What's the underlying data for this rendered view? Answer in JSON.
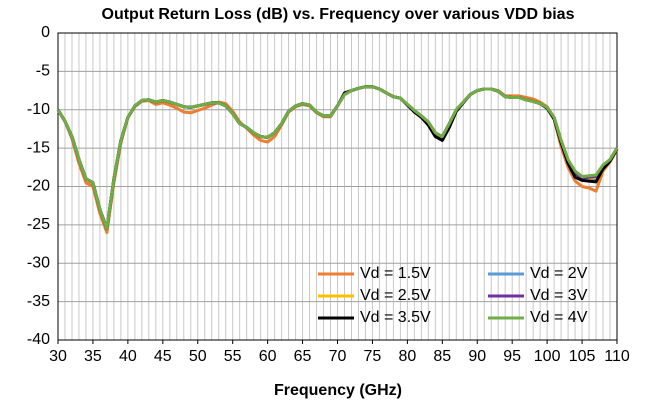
{
  "chart_data": {
    "type": "line",
    "title": "Output Return Loss (dB) vs. Frequency over various VDD bias",
    "xlabel": "Frequency (GHz)",
    "x": [
      30,
      31,
      32,
      33,
      34,
      35,
      36,
      37,
      38,
      39,
      40,
      41,
      42,
      43,
      44,
      45,
      46,
      47,
      48,
      49,
      50,
      51,
      52,
      53,
      54,
      55,
      56,
      57,
      58,
      59,
      60,
      61,
      62,
      63,
      64,
      65,
      66,
      67,
      68,
      69,
      70,
      71,
      72,
      73,
      74,
      75,
      76,
      77,
      78,
      79,
      80,
      81,
      82,
      83,
      84,
      85,
      86,
      87,
      88,
      89,
      90,
      91,
      92,
      93,
      94,
      95,
      96,
      97,
      98,
      99,
      100,
      101,
      102,
      103,
      104,
      105,
      106,
      107,
      108,
      109,
      110
    ],
    "series": [
      {
        "name": "Vd = 1.5V",
        "color": "#ED7D31",
        "values": [
          -10,
          -11.5,
          -13.8,
          -17,
          -19.5,
          -20,
          -23.5,
          -26,
          -19.5,
          -14.3,
          -11,
          -9.6,
          -8.9,
          -8.8,
          -9.3,
          -9.1,
          -9.4,
          -9.8,
          -10.3,
          -10.4,
          -10.1,
          -9.8,
          -9.4,
          -9,
          -9.2,
          -10.2,
          -11.6,
          -12.4,
          -13.3,
          -14,
          -14.2,
          -13.5,
          -12,
          -10.3,
          -9.6,
          -9.3,
          -9.5,
          -10.4,
          -10.9,
          -10.9,
          -9.5,
          -8,
          -7.5,
          -7.2,
          -7,
          -7,
          -7.3,
          -7.8,
          -8.3,
          -8.5,
          -9.4,
          -10.2,
          -10.9,
          -11.7,
          -13.1,
          -13.6,
          -11.9,
          -10,
          -9,
          -8,
          -7.5,
          -7.3,
          -7.3,
          -7.5,
          -8.2,
          -8.2,
          -8.2,
          -8.4,
          -8.6,
          -9,
          -9.6,
          -11.2,
          -14.8,
          -17.5,
          -19.3,
          -20,
          -20.2,
          -20.6,
          -18,
          -16.8,
          -15.2
        ]
      },
      {
        "name": "Vd = 2V",
        "color": "#5B9BD5",
        "values": [
          -10,
          -11.5,
          -13.5,
          -16.5,
          -19,
          -19.5,
          -23,
          -25.5,
          -19,
          -14,
          -11,
          -9.5,
          -8.8,
          -8.7,
          -9,
          -8.8,
          -9,
          -9.3,
          -9.6,
          -9.7,
          -9.5,
          -9.3,
          -9.1,
          -9.1,
          -9.5,
          -10.5,
          -11.8,
          -12.3,
          -13,
          -13.5,
          -13.6,
          -13,
          -11.8,
          -10.2,
          -9.5,
          -9.2,
          -9.4,
          -10.3,
          -10.8,
          -10.8,
          -9.5,
          -8,
          -7.5,
          -7.2,
          -7,
          -7,
          -7.3,
          -7.8,
          -8.3,
          -8.5,
          -9.3,
          -10.1,
          -10.8,
          -11.6,
          -13,
          -13.5,
          -11.8,
          -10,
          -9,
          -8,
          -7.5,
          -7.3,
          -7.3,
          -7.6,
          -8.3,
          -8.4,
          -8.4,
          -8.7,
          -8.9,
          -9.2,
          -9.7,
          -11,
          -14.1,
          -16.7,
          -18.4,
          -19,
          -19,
          -19,
          -17.4,
          -16.6,
          -15
        ]
      },
      {
        "name": "Vd = 2.5V",
        "color": "#FFC000",
        "values": [
          -10,
          -11.5,
          -13.5,
          -16.5,
          -19,
          -19.5,
          -23,
          -25.5,
          -19,
          -14,
          -11,
          -9.5,
          -8.8,
          -8.7,
          -9,
          -8.8,
          -9,
          -9.3,
          -9.6,
          -9.7,
          -9.5,
          -9.3,
          -9.1,
          -9.1,
          -9.5,
          -10.5,
          -11.8,
          -12.3,
          -13,
          -13.5,
          -13.6,
          -13,
          -11.8,
          -10.2,
          -9.5,
          -9.2,
          -9.4,
          -10.3,
          -10.8,
          -10.8,
          -9.5,
          -8,
          -7.5,
          -7.2,
          -7,
          -7,
          -7.3,
          -7.8,
          -8.3,
          -8.5,
          -9.3,
          -10.1,
          -10.8,
          -11.6,
          -13,
          -13.5,
          -11.8,
          -10,
          -9,
          -8,
          -7.5,
          -7.3,
          -7.3,
          -7.6,
          -8.3,
          -8.4,
          -8.4,
          -8.7,
          -8.9,
          -9.2,
          -9.7,
          -11,
          -14,
          -16.6,
          -18.3,
          -18.9,
          -18.9,
          -18.8,
          -17.3,
          -16.5,
          -15
        ]
      },
      {
        "name": "Vd = 3V",
        "color": "#7030A0",
        "values": [
          -10,
          -11.5,
          -13.5,
          -16.5,
          -19,
          -19.5,
          -23,
          -25.5,
          -19,
          -14,
          -11,
          -9.5,
          -8.8,
          -8.7,
          -9,
          -8.8,
          -9,
          -9.3,
          -9.6,
          -9.7,
          -9.5,
          -9.3,
          -9.1,
          -9.1,
          -9.5,
          -10.5,
          -11.8,
          -12.3,
          -13,
          -13.5,
          -13.6,
          -13,
          -11.8,
          -10.2,
          -9.5,
          -9.2,
          -9.4,
          -10.3,
          -10.8,
          -10.8,
          -9.5,
          -8,
          -7.5,
          -7.2,
          -7,
          -7,
          -7.3,
          -7.8,
          -8.3,
          -8.5,
          -9.3,
          -10.1,
          -10.8,
          -11.6,
          -13,
          -13.5,
          -11.8,
          -10,
          -9,
          -8,
          -7.5,
          -7.3,
          -7.3,
          -7.6,
          -8.3,
          -8.4,
          -8.4,
          -8.7,
          -8.9,
          -9.2,
          -9.7,
          -11,
          -14,
          -16.6,
          -18.3,
          -18.9,
          -18.8,
          -18.7,
          -17.3,
          -16.5,
          -15
        ]
      },
      {
        "name": "Vd = 3.5V",
        "color": "#000000",
        "values": [
          -10,
          -11.5,
          -13.5,
          -16.5,
          -19,
          -19.5,
          -23,
          -25.5,
          -19,
          -14,
          -11,
          -9.5,
          -8.8,
          -8.7,
          -9,
          -8.8,
          -9,
          -9.3,
          -9.6,
          -9.7,
          -9.5,
          -9.3,
          -9.1,
          -9.1,
          -9.5,
          -10.5,
          -11.8,
          -12.3,
          -13,
          -13.5,
          -13.6,
          -13,
          -11.8,
          -10.2,
          -9.5,
          -9.2,
          -9.4,
          -10.3,
          -10.8,
          -10.8,
          -9.5,
          -7.8,
          -7.5,
          -7.2,
          -7,
          -7,
          -7.3,
          -7.8,
          -8.3,
          -8.5,
          -9.4,
          -10.3,
          -11,
          -12,
          -13.5,
          -14,
          -12.3,
          -10.2,
          -9.1,
          -8,
          -7.5,
          -7.3,
          -7.3,
          -7.6,
          -8.3,
          -8.4,
          -8.4,
          -8.7,
          -8.9,
          -9.2,
          -9.8,
          -11.2,
          -14.3,
          -17,
          -18.8,
          -19.2,
          -19.3,
          -19.4,
          -17.7,
          -16.7,
          -15.1
        ]
      },
      {
        "name": "Vd = 4V",
        "color": "#70AD47",
        "values": [
          -10,
          -11.5,
          -13.5,
          -16.5,
          -19,
          -19.5,
          -23,
          -25.5,
          -19,
          -14,
          -11,
          -9.5,
          -8.8,
          -8.7,
          -9,
          -8.8,
          -9,
          -9.3,
          -9.6,
          -9.7,
          -9.5,
          -9.3,
          -9.1,
          -9.1,
          -9.5,
          -10.5,
          -11.8,
          -12.3,
          -13,
          -13.5,
          -13.6,
          -13,
          -11.8,
          -10.2,
          -9.5,
          -9.2,
          -9.4,
          -10.3,
          -10.8,
          -10.8,
          -9.5,
          -8,
          -7.5,
          -7.2,
          -7,
          -7,
          -7.3,
          -7.8,
          -8.3,
          -8.5,
          -9.3,
          -10.1,
          -10.8,
          -11.6,
          -13,
          -13.5,
          -11.8,
          -10,
          -9,
          -8,
          -7.5,
          -7.3,
          -7.3,
          -7.6,
          -8.3,
          -8.4,
          -8.4,
          -8.7,
          -8.9,
          -9.2,
          -9.7,
          -11,
          -14,
          -16.5,
          -18,
          -18.7,
          -18.6,
          -18.5,
          -17.2,
          -16.5,
          -15
        ]
      }
    ],
    "xlim": [
      30,
      110
    ],
    "xticks": [
      30,
      35,
      40,
      45,
      50,
      55,
      60,
      65,
      70,
      75,
      80,
      85,
      90,
      95,
      100,
      105,
      110
    ],
    "ylim": [
      -40,
      0
    ],
    "yticks": [
      0,
      -5,
      -10,
      -15,
      -20,
      -25,
      -30,
      -35,
      -40
    ],
    "grid": true,
    "x_grid_step": 1,
    "legend": "lower right"
  }
}
